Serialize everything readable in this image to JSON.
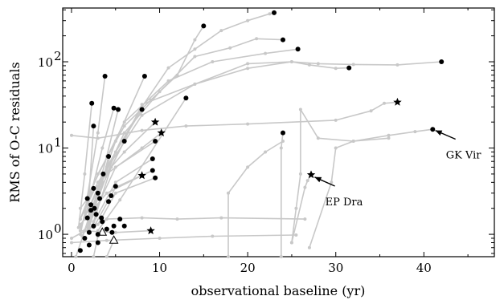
{
  "chart_data": {
    "type": "line",
    "xlabel": "observational baseline (yr)",
    "ylabel": "RMS of O-C residuals",
    "x_range": [
      -1,
      48
    ],
    "y_range": [
      0.55,
      420
    ],
    "y_scale": "log",
    "grid": false,
    "legend": "none",
    "x_ticks": [
      {
        "value": 0,
        "label": "0"
      },
      {
        "value": 10,
        "label": "10"
      },
      {
        "value": 20,
        "label": "20"
      },
      {
        "value": 30,
        "label": "30"
      },
      {
        "value": 40,
        "label": "40"
      }
    ],
    "y_ticks": [
      {
        "value": 1,
        "label": "10",
        "exp": "0"
      },
      {
        "value": 10,
        "label": "10",
        "exp": "1"
      },
      {
        "value": 100,
        "label": "10",
        "exp": "2"
      }
    ],
    "colors": {
      "tracks": "#c8c8c8",
      "markers": "#000000"
    },
    "series": [
      {
        "points": [
          [
            0,
            14
          ],
          [
            3,
            13
          ],
          [
            8,
            16
          ],
          [
            13,
            18
          ],
          [
            20,
            19
          ],
          [
            30,
            21
          ],
          [
            34,
            27
          ],
          [
            35.5,
            33
          ],
          [
            37,
            34
          ]
        ],
        "end": "star"
      },
      {
        "points": [
          [
            1,
            1.5
          ],
          [
            3,
            5
          ],
          [
            6,
            18
          ],
          [
            9,
            36
          ],
          [
            12,
            70
          ],
          [
            14,
            180
          ],
          [
            15,
            260
          ]
        ],
        "end": "dot"
      },
      {
        "points": [
          [
            1,
            1.2
          ],
          [
            4,
            6
          ],
          [
            8,
            30
          ],
          [
            11,
            85
          ],
          [
            14,
            140
          ],
          [
            17,
            230
          ],
          [
            20,
            300
          ],
          [
            22.5,
            360
          ],
          [
            23,
            370
          ]
        ],
        "end": "dot"
      },
      {
        "points": [
          [
            2,
            2
          ],
          [
            6,
            15
          ],
          [
            10,
            45
          ],
          [
            14,
            115
          ],
          [
            18,
            145
          ],
          [
            21,
            185
          ],
          [
            24,
            180
          ]
        ],
        "end": "dot"
      },
      {
        "points": [
          [
            2,
            3
          ],
          [
            6,
            20
          ],
          [
            11,
            60
          ],
          [
            16,
            100
          ],
          [
            22,
            125
          ],
          [
            25.7,
            140
          ]
        ],
        "end": "dot"
      },
      {
        "points": [
          [
            3,
            4
          ],
          [
            8,
            24
          ],
          [
            14,
            55
          ],
          [
            20,
            95
          ],
          [
            25,
            100
          ],
          [
            27,
            92
          ],
          [
            30,
            84
          ],
          [
            31.5,
            85
          ]
        ],
        "end": "dot"
      },
      {
        "points": [
          [
            2,
            1.8
          ],
          [
            8,
            32
          ],
          [
            14,
            55
          ],
          [
            20,
            84
          ],
          [
            25,
            100
          ],
          [
            28,
            95
          ],
          [
            32,
            93
          ],
          [
            37,
            92
          ],
          [
            42,
            100
          ]
        ],
        "end": "dot"
      },
      {
        "points": [
          [
            17.8,
            0.5
          ],
          [
            17.8,
            3
          ],
          [
            20,
            6
          ],
          [
            22,
            9
          ],
          [
            24,
            12
          ]
        ],
        "end": "none"
      },
      {
        "points": [
          [
            23.8,
            0.5
          ],
          [
            23.8,
            10
          ],
          [
            24,
            15
          ]
        ],
        "end": "dot"
      },
      {
        "points": [
          [
            25,
            0.8
          ],
          [
            25.5,
            2
          ],
          [
            26,
            5
          ],
          [
            26,
            28
          ],
          [
            28,
            13
          ],
          [
            32,
            12
          ],
          [
            36,
            13
          ]
        ],
        "end": "none"
      },
      {
        "points": [
          [
            25,
            0.8
          ],
          [
            26.5,
            3.5
          ],
          [
            26.8,
            4.2
          ],
          [
            27.2,
            4.9
          ]
        ],
        "end": "star"
      },
      {
        "points": [
          [
            27,
            0.7
          ],
          [
            29.5,
            4
          ],
          [
            30,
            10
          ],
          [
            32,
            12
          ],
          [
            36,
            14
          ],
          [
            39,
            15.5
          ],
          [
            41,
            16.5
          ]
        ],
        "end": "dot"
      },
      {
        "points": [
          [
            0,
            0.9
          ],
          [
            4,
            1.5
          ],
          [
            8,
            1.55
          ],
          [
            12,
            1.5
          ],
          [
            17,
            1.55
          ],
          [
            26.5,
            1.5
          ]
        ],
        "end": "none"
      },
      {
        "points": [
          [
            0,
            0.8
          ],
          [
            4,
            0.85
          ],
          [
            10,
            0.9
          ],
          [
            16,
            0.95
          ],
          [
            25.5,
            0.98
          ]
        ],
        "end": "none"
      },
      {
        "points": [
          [
            1,
            1.1
          ],
          [
            5,
            1.05
          ],
          [
            9,
            1.1
          ]
        ],
        "end": "star"
      },
      {
        "points": [
          [
            1,
            1.5
          ],
          [
            3,
            4
          ],
          [
            6,
            9
          ],
          [
            9.5,
            20
          ]
        ],
        "end": "star"
      },
      {
        "points": [
          [
            1,
            2
          ],
          [
            4,
            5
          ],
          [
            8,
            10
          ],
          [
            10.2,
            15
          ]
        ],
        "end": "star"
      },
      {
        "points": [
          [
            1,
            1.3
          ],
          [
            4,
            3
          ],
          [
            8,
            4.8
          ]
        ],
        "end": "star"
      },
      {
        "points": [
          [
            1,
            1
          ],
          [
            2,
            3
          ],
          [
            2.5,
            18
          ]
        ],
        "end": "dot"
      },
      {
        "points": [
          [
            0.8,
            1.2
          ],
          [
            1.5,
            5
          ],
          [
            2.3,
            33
          ]
        ],
        "end": "dot"
      },
      {
        "points": [
          [
            1.5,
            1.8
          ],
          [
            3,
            15
          ],
          [
            3.8,
            68
          ]
        ],
        "end": "dot"
      },
      {
        "points": [
          [
            1.5,
            1.5
          ],
          [
            3.5,
            10
          ],
          [
            4.8,
            29
          ]
        ],
        "end": "dot"
      },
      {
        "points": [
          [
            1.8,
            1.2
          ],
          [
            4,
            8
          ],
          [
            5.3,
            28
          ]
        ],
        "end": "dot"
      },
      {
        "points": [
          [
            2,
            1.6
          ],
          [
            5,
            12
          ],
          [
            8.3,
            68
          ]
        ],
        "end": "dot"
      },
      {
        "points": [
          [
            2,
            1.4
          ],
          [
            5,
            9
          ],
          [
            8,
            28
          ]
        ],
        "end": "dot"
      },
      {
        "points": [
          [
            2,
            1.3
          ],
          [
            5,
            6
          ],
          [
            9.5,
            12
          ]
        ],
        "end": "dot"
      },
      {
        "points": [
          [
            2,
            1.1
          ],
          [
            5,
            4
          ],
          [
            9.2,
            7.5
          ]
        ],
        "end": "dot"
      },
      {
        "points": [
          [
            2.5,
            1.2
          ],
          [
            5,
            3.5
          ],
          [
            9.2,
            5.5
          ]
        ],
        "end": "dot"
      },
      {
        "points": [
          [
            3,
            1.3
          ],
          [
            5,
            3
          ],
          [
            9.5,
            4.5
          ]
        ],
        "end": "dot"
      },
      {
        "points": [
          [
            3,
            1.1
          ],
          [
            5.5,
            2.5
          ],
          [
            13,
            38
          ]
        ],
        "end": "dot"
      },
      {
        "points": [
          [
            2.5,
            1.4
          ],
          [
            4.5,
            6
          ],
          [
            6,
            12
          ]
        ],
        "end": "dot"
      },
      {
        "points": [
          [
            2,
            1.2
          ],
          [
            3.5,
            4
          ],
          [
            4.2,
            8
          ]
        ],
        "end": "dot"
      },
      {
        "points": [
          [
            1.5,
            1.1
          ],
          [
            3,
            3
          ],
          [
            3.6,
            5
          ]
        ],
        "end": "dot"
      },
      {
        "points": [
          [
            1.2,
            0.95
          ],
          [
            2.5,
            2
          ],
          [
            3,
            3
          ]
        ],
        "end": "dot"
      },
      {
        "points": [
          [
            0.5,
            0.5
          ],
          [
            1.5,
            1.1
          ],
          [
            2.2,
            1.9
          ]
        ],
        "end": "dot"
      },
      {
        "points": [
          [
            4,
            0.5
          ],
          [
            4.8,
            0.85
          ]
        ],
        "end": "triangle"
      },
      {
        "points": [
          [
            2.5,
            0.5
          ],
          [
            3,
            0.95
          ],
          [
            3.5,
            1.05
          ]
        ],
        "end": "triangle"
      }
    ],
    "dots": [
      [
        1.5,
        0.9
      ],
      [
        2,
        1.05
      ],
      [
        2.5,
        1.25
      ],
      [
        3,
        1.0
      ],
      [
        3.5,
        1.4
      ],
      [
        4,
        1.15
      ],
      [
        1.8,
        1.55
      ],
      [
        2.8,
        1.7
      ],
      [
        4.8,
        1.25
      ],
      [
        5.5,
        1.5
      ],
      [
        2.2,
        2.2
      ],
      [
        3.2,
        2.6
      ],
      [
        4.2,
        2.4
      ],
      [
        1.8,
        2.6
      ],
      [
        2.5,
        3.4
      ],
      [
        4.5,
        2.8
      ],
      [
        5,
        3.6
      ],
      [
        2,
        0.75
      ],
      [
        3,
        0.8
      ],
      [
        1,
        0.65
      ],
      [
        6,
        1.25
      ],
      [
        3.4,
        1.55
      ],
      [
        4.6,
        1.05
      ],
      [
        2.6,
        2.0
      ]
    ],
    "annotations": [
      {
        "text": "GK Vir",
        "xy": [
          41.3,
          16
        ],
        "xytext": [
          42.5,
          9.8
        ]
      },
      {
        "text": "EP Dra",
        "xy": [
          27.6,
          4.6
        ],
        "xytext": [
          28.8,
          2.8
        ]
      }
    ]
  }
}
